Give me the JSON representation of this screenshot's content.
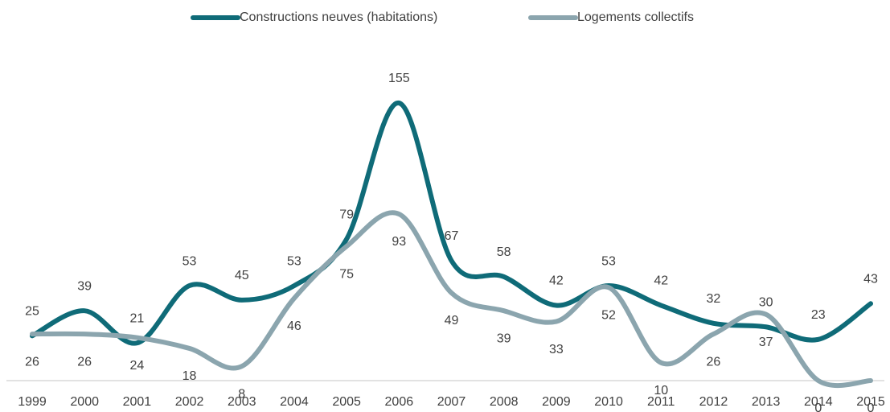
{
  "chart_data": {
    "type": "line",
    "categories": [
      "1999",
      "2000",
      "2001",
      "2002",
      "2003",
      "2004",
      "2005",
      "2006",
      "2007",
      "2008",
      "2009",
      "2010",
      "2011",
      "2012",
      "2013",
      "2014",
      "2015"
    ],
    "series": [
      {
        "name": "Constructions neuves (habitations)",
        "color": "#0f6b78",
        "values": [
          25,
          39,
          21,
          53,
          45,
          53,
          79,
          155,
          67,
          58,
          42,
          53,
          42,
          32,
          30,
          23,
          43
        ]
      },
      {
        "name": "Logements collectifs",
        "color": "#8ba5ae",
        "values": [
          26,
          26,
          24,
          18,
          8,
          46,
          75,
          93,
          49,
          39,
          33,
          52,
          10,
          26,
          37,
          0,
          0
        ]
      }
    ],
    "grid": false
  }
}
